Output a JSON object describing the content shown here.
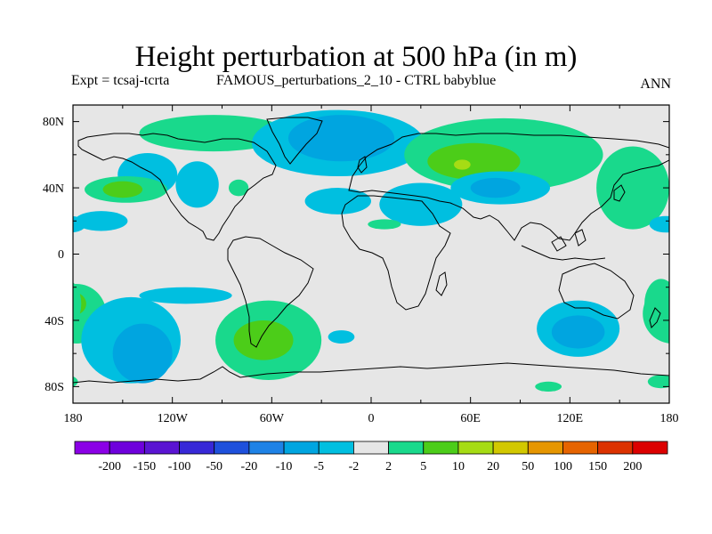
{
  "title": "Height perturbation at 500 hPa (in m)",
  "expt_label": "Expt = tcsaj-tcrta",
  "subtitle": "FAMOUS_perturbations_2_10 - CTRL babyblue",
  "season": "ANN",
  "colors": {
    "land_outline": "#000000",
    "background_field": "#e6e6e6",
    "neg_2_5": "#00bfe0",
    "neg_5_10": "#00a5e0",
    "neg_10_20": "#1e8ce6",
    "pos_2_5": "#19d98c",
    "pos_5_10": "#4ccd19",
    "pos_10_20": "#a6dc14"
  },
  "chart_data": {
    "type": "heatmap",
    "projection": "cylindrical-equidistant",
    "lon_range": [
      -180,
      180
    ],
    "lat_range": [
      -90,
      90
    ],
    "x_tick_labels": [
      "180",
      "120W",
      "60W",
      "0",
      "60E",
      "120E",
      "180"
    ],
    "y_tick_labels": [
      "80N",
      "40N",
      "0",
      "40S",
      "80S"
    ],
    "colorbar": {
      "labels": [
        "-200",
        "-150",
        "-100",
        "-50",
        "-20",
        "-10",
        "-5",
        "-2",
        "2",
        "5",
        "10",
        "20",
        "50",
        "100",
        "150",
        "200"
      ],
      "colors": [
        "#8b00e6",
        "#6e00dc",
        "#5a14d2",
        "#3728d7",
        "#1e50dc",
        "#1e82e6",
        "#00a5e0",
        "#00bfe0",
        "#e6e6e6",
        "#19d98c",
        "#4ccd19",
        "#a6dc14",
        "#d2c800",
        "#e69600",
        "#e66400",
        "#dc3200",
        "#dc0000"
      ]
    },
    "anomaly_regions": [
      {
        "level": "pos_2_5",
        "lon": -95,
        "lat": 73,
        "rx": 45,
        "ry": 11
      },
      {
        "level": "neg_2_5",
        "lon": -20,
        "lat": 67,
        "rx": 52,
        "ry": 20
      },
      {
        "level": "neg_5_10",
        "lon": -18,
        "lat": 70,
        "rx": 32,
        "ry": 14
      },
      {
        "level": "neg_2_5",
        "lon": -135,
        "lat": 48,
        "rx": 18,
        "ry": 13
      },
      {
        "level": "neg_2_5",
        "lon": -105,
        "lat": 42,
        "rx": 13,
        "ry": 14
      },
      {
        "level": "pos_2_5",
        "lon": -148,
        "lat": 39,
        "rx": 25,
        "ry": 8
      },
      {
        "level": "pos_5_10",
        "lon": -150,
        "lat": 39,
        "rx": 12,
        "ry": 5
      },
      {
        "level": "pos_2_5",
        "lon": -80,
        "lat": 40,
        "rx": 6,
        "ry": 5
      },
      {
        "level": "neg_2_5",
        "lon": -163,
        "lat": 20,
        "rx": 16,
        "ry": 6
      },
      {
        "level": "neg_2_5",
        "lon": -20,
        "lat": 32,
        "rx": 20,
        "ry": 8
      },
      {
        "level": "neg_2_5",
        "lon": 30,
        "lat": 30,
        "rx": 25,
        "ry": 13
      },
      {
        "level": "pos_2_5",
        "lon": 8,
        "lat": 18,
        "rx": 10,
        "ry": 3
      },
      {
        "level": "pos_2_5",
        "lon": 80,
        "lat": 60,
        "rx": 60,
        "ry": 22
      },
      {
        "level": "pos_5_10",
        "lon": 62,
        "lat": 56,
        "rx": 28,
        "ry": 11
      },
      {
        "level": "pos_10_20",
        "lon": 55,
        "lat": 54,
        "rx": 5,
        "ry": 3
      },
      {
        "level": "neg_2_5",
        "lon": 78,
        "lat": 40,
        "rx": 30,
        "ry": 10
      },
      {
        "level": "neg_5_10",
        "lon": 75,
        "lat": 40,
        "rx": 15,
        "ry": 6
      },
      {
        "level": "pos_2_5",
        "lon": 158,
        "lat": 40,
        "rx": 22,
        "ry": 25
      },
      {
        "level": "neg_2_5",
        "lon": 178,
        "lat": 18,
        "rx": 10,
        "ry": 5
      },
      {
        "level": "pos_2_5",
        "lon": -178,
        "lat": -36,
        "rx": 18,
        "ry": 18
      },
      {
        "level": "pos_5_10",
        "lon": -180,
        "lat": -30,
        "rx": 8,
        "ry": 7
      },
      {
        "level": "neg_2_5",
        "lon": -145,
        "lat": -52,
        "rx": 30,
        "ry": 26
      },
      {
        "level": "neg_5_10",
        "lon": -138,
        "lat": -60,
        "rx": 18,
        "ry": 18
      },
      {
        "level": "neg_2_5",
        "lon": -112,
        "lat": -25,
        "rx": 28,
        "ry": 5
      },
      {
        "level": "pos_2_5",
        "lon": -62,
        "lat": -52,
        "rx": 32,
        "ry": 24
      },
      {
        "level": "pos_5_10",
        "lon": -65,
        "lat": -52,
        "rx": 18,
        "ry": 12
      },
      {
        "level": "neg_2_5",
        "lon": -18,
        "lat": -50,
        "rx": 8,
        "ry": 4
      },
      {
        "level": "neg_2_5",
        "lon": 125,
        "lat": -45,
        "rx": 25,
        "ry": 17
      },
      {
        "level": "neg_5_10",
        "lon": 125,
        "lat": -47,
        "rx": 16,
        "ry": 10
      },
      {
        "level": "pos_2_5",
        "lon": 175,
        "lat": -30,
        "rx": 10,
        "ry": 15
      },
      {
        "level": "pos_2_5",
        "lon": 107,
        "lat": -80,
        "rx": 8,
        "ry": 3
      },
      {
        "level": "pos_2_5",
        "lon": 175,
        "lat": -77,
        "rx": 8,
        "ry": 4
      }
    ]
  }
}
